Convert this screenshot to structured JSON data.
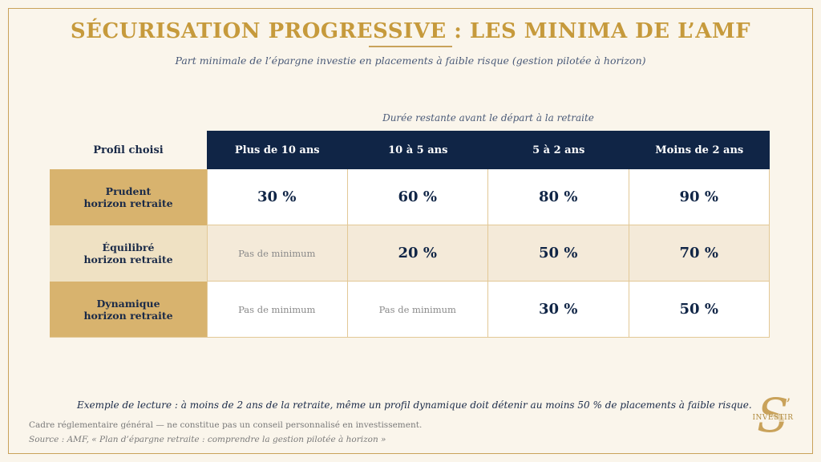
{
  "title": "SÉCURISATION PROGRESSIVE : LES MINIMA DE L’AMF",
  "subtitle": "Part minimale de l’épargne investie en placements à faible risque (gestion pilotée à horizon)",
  "table": {
    "duration_label": "Durée restante avant le départ à la retraite",
    "profile_header": "Profil choisi",
    "columns": [
      "Plus de 10 ans",
      "10 à 5 ans",
      "5 à 2 ans",
      "Moins de 2 ans"
    ],
    "rows": [
      {
        "label_line1": "Prudent",
        "label_line2": "horizon retraite",
        "cells": [
          "30 %",
          "60 %",
          "80 %",
          "90 %"
        ]
      },
      {
        "label_line1": "Équilibré",
        "label_line2": "horizon retraite",
        "cells": [
          "Pas de minimum",
          "20 %",
          "50 %",
          "70 %"
        ]
      },
      {
        "label_line1": "Dynamique",
        "label_line2": "horizon retraite",
        "cells": [
          "Pas de minimum",
          "Pas de minimum",
          "30 %",
          "50 %"
        ]
      }
    ]
  },
  "reading_example": "Exemple de lecture : à moins de 2 ans de la retraite, même un profil dynamique doit détenir au moins 50 % de placements à faible risque.",
  "disclaimer": "Cadre réglementaire général — ne constitue pas un conseil personnalisé en investissement.",
  "source": "Source : AMF, « Plan d’épargne retraite : comprendre la gestion pilotée à horizon »",
  "logo": {
    "letter": "S",
    "apostrophe": "’",
    "brand": "INVESTIR"
  },
  "colors": {
    "navy": "#102546",
    "gold": "#c69a3c",
    "cream": "#faf5eb"
  }
}
